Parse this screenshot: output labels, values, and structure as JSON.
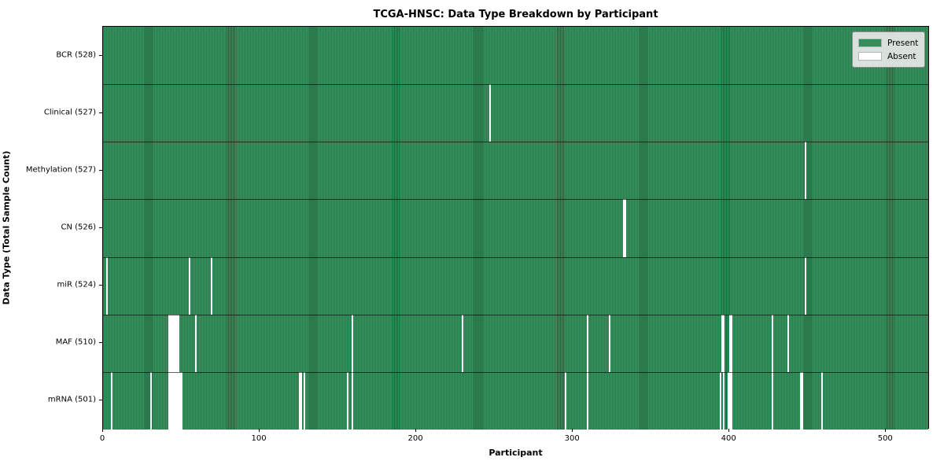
{
  "title": "TCGA-HNSC: Data Type Breakdown by Participant",
  "x_axis_title": "Participant",
  "y_axis_title": "Data Type (Total Sample Count)",
  "legend": {
    "present_label": "Present",
    "absent_label": "Absent"
  },
  "colors": {
    "present": "#2f9159",
    "present_edge": "#216540",
    "absent": "#ffffff",
    "row_divider": "#1a1a1a",
    "plot_border": "#000000",
    "legend_bg": "#e8e8e8",
    "legend_border": "#8f8f8f"
  },
  "chart_data": {
    "type": "heatmap",
    "title": "TCGA-HNSC: Data Type Breakdown by Participant",
    "xlabel": "Participant",
    "ylabel": "Data Type (Total Sample Count)",
    "x_ticks": [
      0,
      100,
      200,
      300,
      400,
      500
    ],
    "x_range": [
      0,
      528
    ],
    "n_participants": 528,
    "legend_entries": [
      {
        "label": "Present",
        "color": "#2f9159"
      },
      {
        "label": "Absent",
        "color": "#ffffff"
      }
    ],
    "rows": [
      {
        "label": "BCR (528)",
        "data_type": "BCR",
        "present_count": 528,
        "absent_participants": []
      },
      {
        "label": "Clinical (527)",
        "data_type": "Clinical",
        "present_count": 527,
        "absent_participants": [
          247
        ]
      },
      {
        "label": "Methylation (527)",
        "data_type": "Methylation",
        "present_count": 527,
        "absent_participants": [
          448
        ]
      },
      {
        "label": "CN (526)",
        "data_type": "CN",
        "present_count": 526,
        "absent_participants": [
          332,
          333
        ]
      },
      {
        "label": "miR (524)",
        "data_type": "miR",
        "present_count": 524,
        "absent_participants": [
          2,
          55,
          69,
          448
        ]
      },
      {
        "label": "MAF (510)",
        "data_type": "MAF",
        "present_count": 510,
        "absent_participants": [
          42,
          43,
          44,
          45,
          46,
          47,
          48,
          59,
          159,
          229,
          309,
          323,
          395,
          396,
          400,
          401,
          427,
          437
        ]
      },
      {
        "label": "mRNA (501)",
        "data_type": "mRNA",
        "present_count": 501,
        "absent_participants": [
          5,
          30,
          42,
          43,
          44,
          45,
          46,
          47,
          48,
          49,
          50,
          125,
          126,
          128,
          156,
          159,
          295,
          309,
          394,
          396,
          399,
          400,
          401,
          427,
          445,
          446,
          459
        ]
      }
    ]
  }
}
